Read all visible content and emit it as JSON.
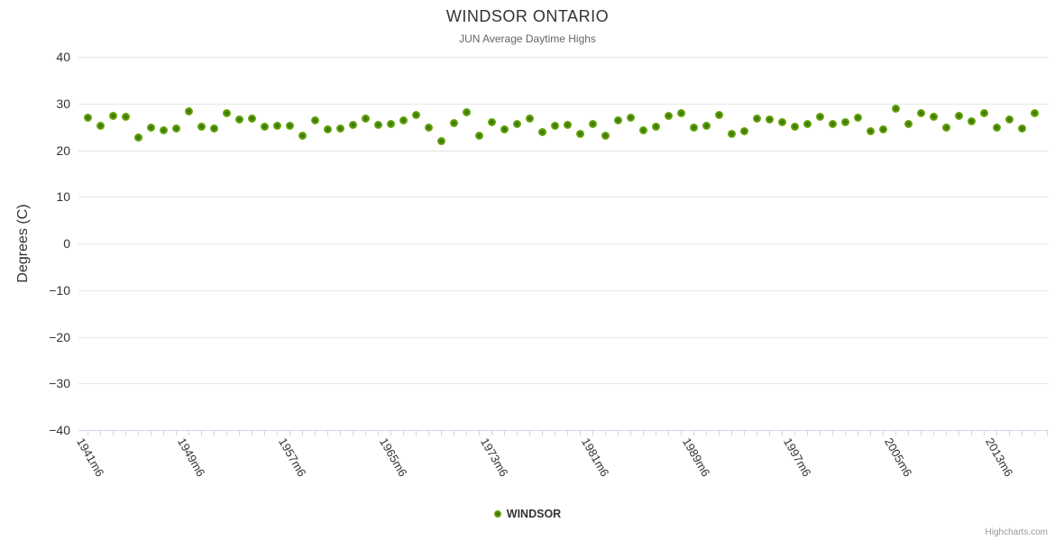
{
  "chart_data": {
    "type": "scatter",
    "title": "WINDSOR ONTARIO",
    "subtitle": "JUN Average Daytime Highs",
    "xlabel": "",
    "ylabel": "Degrees (C)",
    "ylim": [
      -40,
      40
    ],
    "y_ticks": [
      40,
      30,
      20,
      10,
      0,
      -10,
      -20,
      -30,
      -40
    ],
    "grid": "horizontal-only",
    "legend_position": "bottom-center",
    "x_start_year": 1941,
    "x_end_year": 2016,
    "x_step_years": 1,
    "x_label_suffix": "m6",
    "x_label_every_n_points": 8,
    "x_tick_labels": [
      "1941m6",
      "1949m6",
      "1957m6",
      "1965m6",
      "1973m6",
      "1981m6",
      "1989m6",
      "1997m6",
      "2005m6",
      "2013m6"
    ],
    "series": [
      {
        "name": "WINDSOR",
        "color": "#6fae0a",
        "values": [
          27.0,
          25.2,
          27.3,
          27.1,
          22.8,
          24.8,
          24.2,
          24.7,
          28.4,
          25.1,
          24.6,
          28.0,
          26.5,
          26.8,
          25.1,
          25.3,
          25.3,
          23.1,
          26.4,
          24.4,
          24.6,
          25.4,
          26.8,
          25.4,
          25.6,
          26.4,
          27.6,
          24.9,
          22.0,
          25.8,
          28.1,
          23.0,
          26.0,
          24.4,
          25.6,
          26.8,
          23.8,
          25.2,
          25.4,
          23.4,
          25.6,
          23.1,
          26.4,
          27.0,
          24.2,
          25.0,
          27.3,
          28.0,
          24.9,
          25.3,
          27.6,
          23.5,
          24.0,
          26.8,
          26.6,
          26.0,
          25.0,
          25.6,
          27.1,
          25.6,
          26.0,
          26.9,
          24.0,
          24.4,
          28.9,
          25.6,
          27.9,
          27.1,
          24.8,
          27.3,
          26.2,
          28.0,
          24.9,
          26.5,
          24.6,
          27.9
        ]
      }
    ]
  },
  "legend": {
    "label": "WINDSOR"
  },
  "credits": "Highcharts.com",
  "colors": {
    "marker_green": "#6fae0a",
    "gridline": "#e6e6e6",
    "axis_line": "#ccd6eb",
    "title_text": "#333333",
    "subtitle_text": "#666666",
    "tick_label_text": "#333333",
    "credits_text": "#999999",
    "background": "#ffffff"
  }
}
